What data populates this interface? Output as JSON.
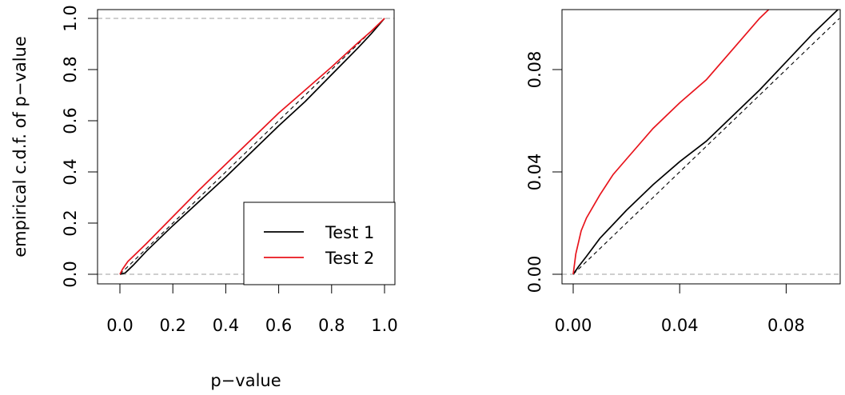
{
  "colors": {
    "test1": "#000000",
    "test2": "#e8141c",
    "reference": "#000000",
    "bounds": "#bfbfbf",
    "frame": "#000000"
  },
  "chart_data": [
    {
      "type": "line",
      "title": "",
      "xlabel": "p−value",
      "ylabel": "empirical c.d.f. of p−value",
      "xlim": [
        0,
        1
      ],
      "ylim": [
        0,
        1
      ],
      "xticks": [
        "0.0",
        "0.2",
        "0.4",
        "0.6",
        "0.8",
        "1.0"
      ],
      "yticks": [
        "0.0",
        "0.2",
        "0.4",
        "0.6",
        "0.8",
        "1.0"
      ],
      "grid": false,
      "legend": {
        "position": "bottom-right",
        "entries": [
          "Test 1",
          "Test 2"
        ]
      },
      "reference_lines": {
        "diagonal": "dashed",
        "horizontal": [
          0,
          1
        ]
      },
      "series": [
        {
          "name": "Test 1",
          "color": "#000000",
          "x": [
            0,
            0.02,
            0.05,
            0.1,
            0.2,
            0.3,
            0.4,
            0.5,
            0.6,
            0.7,
            0.8,
            0.9,
            0.95,
            1.0
          ],
          "y": [
            0,
            0.005,
            0.035,
            0.09,
            0.19,
            0.285,
            0.38,
            0.48,
            0.58,
            0.675,
            0.78,
            0.885,
            0.94,
            1.0
          ]
        },
        {
          "name": "Test 2",
          "color": "#e8141c",
          "x": [
            0,
            0.01,
            0.03,
            0.05,
            0.1,
            0.2,
            0.3,
            0.4,
            0.5,
            0.6,
            0.7,
            0.8,
            0.9,
            0.95,
            1.0
          ],
          "y": [
            0,
            0.02,
            0.05,
            0.07,
            0.12,
            0.225,
            0.33,
            0.43,
            0.53,
            0.63,
            0.72,
            0.81,
            0.905,
            0.95,
            1.0
          ]
        }
      ]
    },
    {
      "type": "line",
      "title": "",
      "xlabel": "",
      "ylabel": "",
      "xlim": [
        0,
        0.1
      ],
      "ylim": [
        0,
        0.1
      ],
      "xticks": [
        "0.00",
        "0.04",
        "0.08"
      ],
      "yticks": [
        "0.00",
        "0.04",
        "0.08"
      ],
      "grid": false,
      "reference_lines": {
        "diagonal": "dashed",
        "horizontal": [
          0
        ]
      },
      "series": [
        {
          "name": "Test 1",
          "color": "#000000",
          "x": [
            0,
            0.002,
            0.005,
            0.01,
            0.02,
            0.03,
            0.04,
            0.05,
            0.06,
            0.07,
            0.08,
            0.09,
            0.1
          ],
          "y": [
            0,
            0.003,
            0.007,
            0.014,
            0.025,
            0.035,
            0.044,
            0.052,
            0.062,
            0.072,
            0.083,
            0.094,
            0.104
          ]
        },
        {
          "name": "Test 2",
          "color": "#e8141c",
          "x": [
            0,
            0.001,
            0.003,
            0.005,
            0.01,
            0.015,
            0.02,
            0.03,
            0.04,
            0.05,
            0.06,
            0.07,
            0.074
          ],
          "y": [
            0,
            0.008,
            0.017,
            0.022,
            0.031,
            0.039,
            0.045,
            0.057,
            0.067,
            0.076,
            0.088,
            0.1,
            0.104
          ]
        }
      ]
    }
  ]
}
